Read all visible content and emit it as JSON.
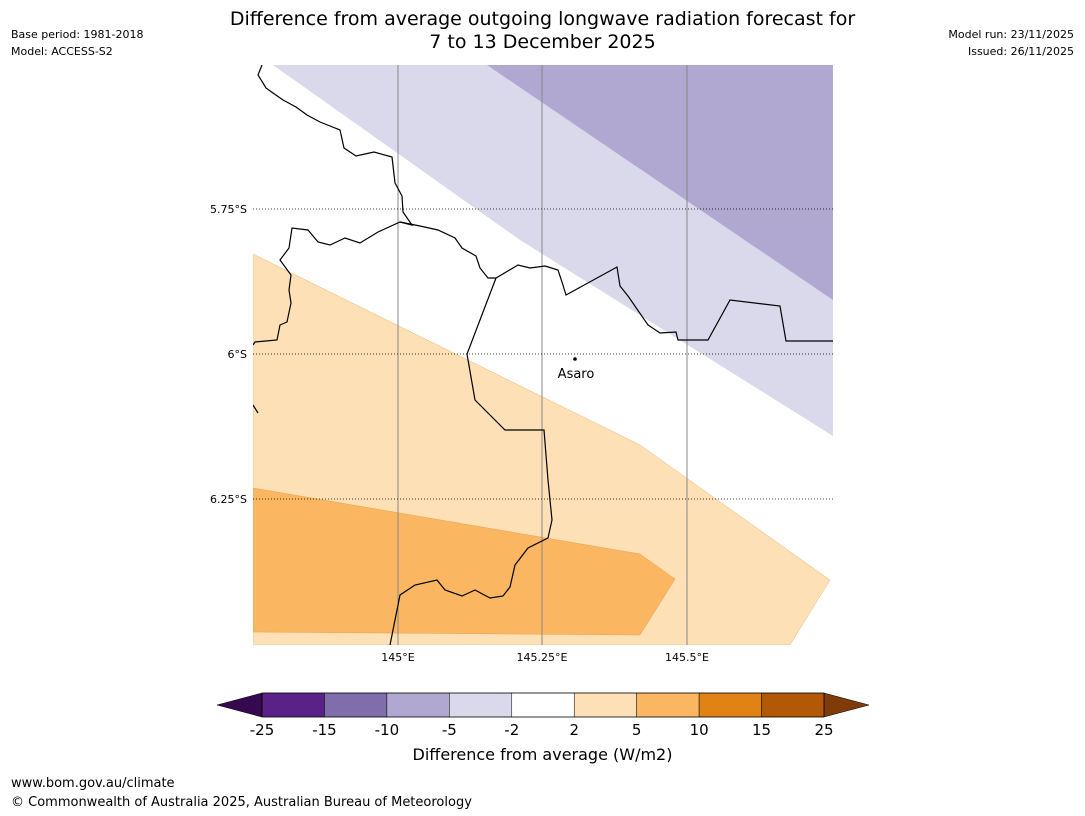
{
  "title": {
    "line1": "Difference from average outgoing longwave radiation forecast for",
    "line2": "7 to 13 December 2025"
  },
  "meta_left": {
    "base_period": "Base period: 1981-2018",
    "model": "Model: ACCESS-S2"
  },
  "meta_right": {
    "model_run": "Model run: 23/11/2025",
    "issued": "Issued: 26/11/2025"
  },
  "map": {
    "lat_labels": [
      "5.75°S",
      "6°S",
      "6.25°S"
    ],
    "lon_labels": [
      "145°E",
      "145.25°E",
      "145.5°E"
    ],
    "place": {
      "name": "Asaro"
    }
  },
  "colorbar": {
    "ticks": [
      "-25",
      "-15",
      "-10",
      "-5",
      "-2",
      "2",
      "5",
      "10",
      "15",
      "25"
    ],
    "colors": [
      "#5a2287",
      "#7f6eab",
      "#b0a8d1",
      "#d9d9eb",
      "#ffffff",
      "#fde0b5",
      "#fbb661",
      "#e08214",
      "#b35806"
    ],
    "under_color": "#35084f",
    "over_color": "#7f3b08",
    "label": "Difference from average (W/m2)"
  },
  "footer": {
    "url": "www.bom.gov.au/climate",
    "copyright": "© Commonwealth of Australia 2025, Australian Bureau of Meteorology"
  }
}
